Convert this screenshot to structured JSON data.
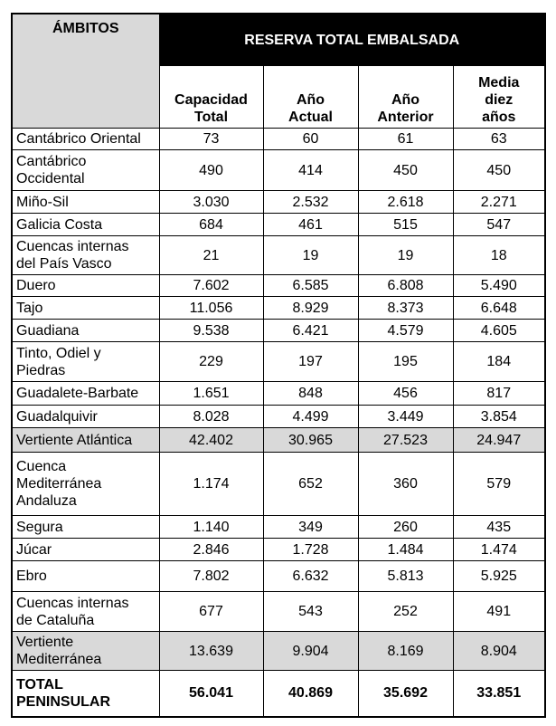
{
  "table": {
    "header": {
      "first": "ÁMBITOS",
      "group": "RESERVA TOTAL EMBALSADA",
      "columns": [
        "Capacidad\nTotal",
        "Año\nActual",
        "Año\nAnterior",
        "Media\ndiez\naños"
      ]
    },
    "rows": [
      [
        "Cantábrico Oriental",
        "73",
        "60",
        "61",
        "63"
      ],
      [
        "Cantábrico\nOccidental",
        "490",
        "414",
        "450",
        "450"
      ],
      [
        "Miño-Sil",
        "3.030",
        "2.532",
        "2.618",
        "2.271"
      ],
      [
        "Galicia Costa",
        "684",
        "461",
        "515",
        "547"
      ],
      [
        "Cuencas internas\ndel País Vasco",
        "21",
        "19",
        "19",
        "18"
      ],
      [
        "Duero",
        "7.602",
        "6.585",
        "6.808",
        "5.490"
      ],
      [
        "Tajo",
        "11.056",
        "8.929",
        "8.373",
        "6.648"
      ],
      [
        "Guadiana",
        "9.538",
        "6.421",
        "4.579",
        "4.605"
      ],
      [
        "Tinto, Odiel y\nPiedras",
        "229",
        "197",
        "195",
        "184"
      ],
      [
        "Guadalete-Barbate",
        "1.651",
        "848",
        "456",
        "817"
      ],
      [
        "Guadalquivir",
        "8.028",
        "4.499",
        "3.449",
        "3.854"
      ],
      [
        "Vertiente Atlántica",
        "42.402",
        "30.965",
        "27.523",
        "24.947"
      ],
      [
        "Cuenca\nMediterránea\nAndaluza",
        "1.174",
        "652",
        "360",
        "579"
      ],
      [
        "Segura",
        "1.140",
        "349",
        "260",
        "435"
      ],
      [
        "Júcar",
        "2.846",
        "1.728",
        "1.484",
        "1.474"
      ],
      [
        "Ebro",
        "7.802",
        "6.632",
        "5.813",
        "5.925"
      ],
      [
        "Cuencas internas\nde Cataluña",
        "677",
        "543",
        "252",
        "491"
      ],
      [
        "Vertiente\nMediterránea",
        "13.639",
        "9.904",
        "8.169",
        "8.904"
      ],
      [
        "TOTAL\nPENINSULAR",
        "56.041",
        "40.869",
        "35.692",
        "33.851"
      ]
    ]
  }
}
